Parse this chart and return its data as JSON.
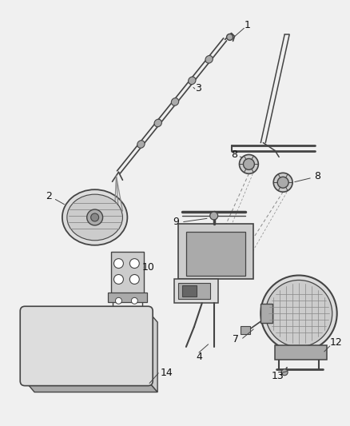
{
  "background_color": "#f0f0f0",
  "line_color": "#444444",
  "label_color": "#111111",
  "figsize": [
    4.38,
    5.33
  ],
  "dpi": 100
}
